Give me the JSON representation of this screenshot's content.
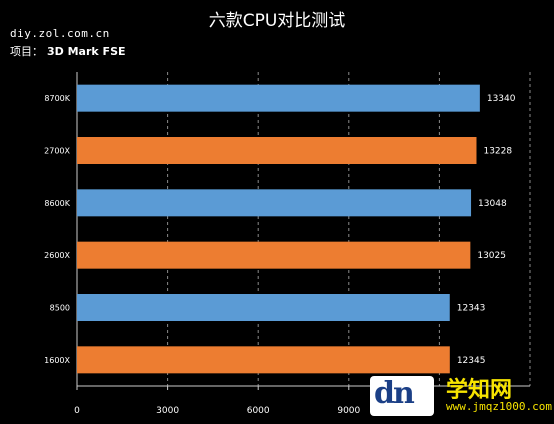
{
  "chart_data": {
    "type": "bar",
    "orientation": "horizontal",
    "title": "六款CPU对比测试",
    "source": "diy.zol.com.cn",
    "project_label": "项目：",
    "project_value": "3D Mark FSE",
    "categories": [
      "8700K",
      "2700X",
      "8600K",
      "2600X",
      "8500",
      "1600X"
    ],
    "values": [
      13340,
      13228,
      13048,
      13025,
      12343,
      12345
    ],
    "bar_colors": [
      "#5b9bd5",
      "#ed7d31",
      "#5b9bd5",
      "#ed7d31",
      "#5b9bd5",
      "#ed7d31"
    ],
    "xlim": [
      0,
      15000
    ],
    "xticks": [
      0,
      3000,
      6000,
      9000
    ],
    "grid": "vertical-dashed",
    "xlabel": "",
    "ylabel": ""
  },
  "watermark": {
    "logo_text": "dn",
    "name": "学知网",
    "url": "www.jmqz1000.com"
  }
}
